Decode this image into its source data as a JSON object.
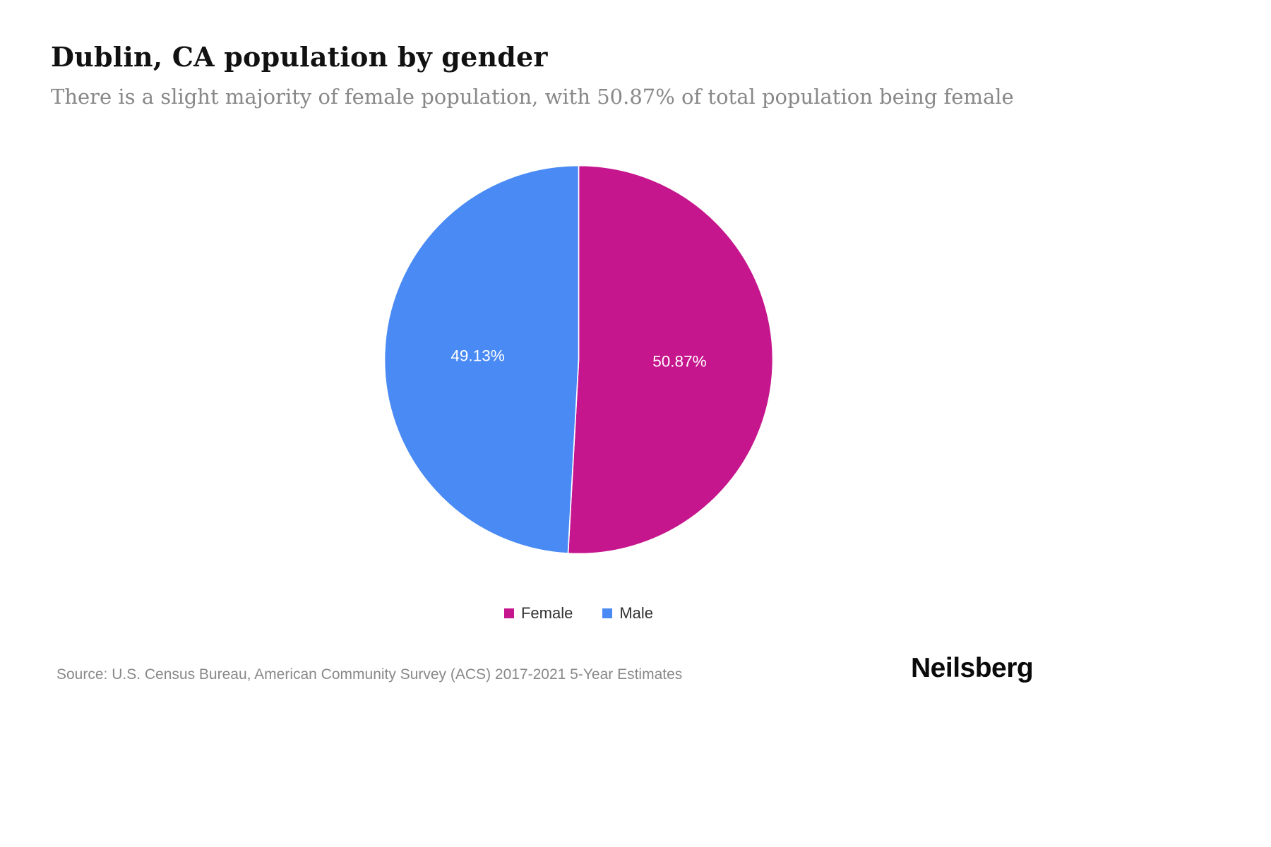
{
  "page": {
    "title": "Dublin, CA population by gender",
    "subtitle": "There is a slight majority of female population, with 50.87% of total population being female",
    "source": "Source: U.S. Census Bureau, American Community Survey (ACS) 2017-2021 5-Year Estimates",
    "brand": "Neilsberg"
  },
  "chart_data": {
    "type": "pie",
    "title": "Dublin, CA population by gender",
    "labels": [
      "Female",
      "Male"
    ],
    "values": [
      50.87,
      49.13
    ],
    "value_labels": [
      "50.87%",
      "49.13%"
    ],
    "colors": [
      "#C6168D",
      "#4A8AF5"
    ],
    "legend_position": "bottom",
    "start_angle_deg": 0,
    "direction": "clockwise"
  }
}
